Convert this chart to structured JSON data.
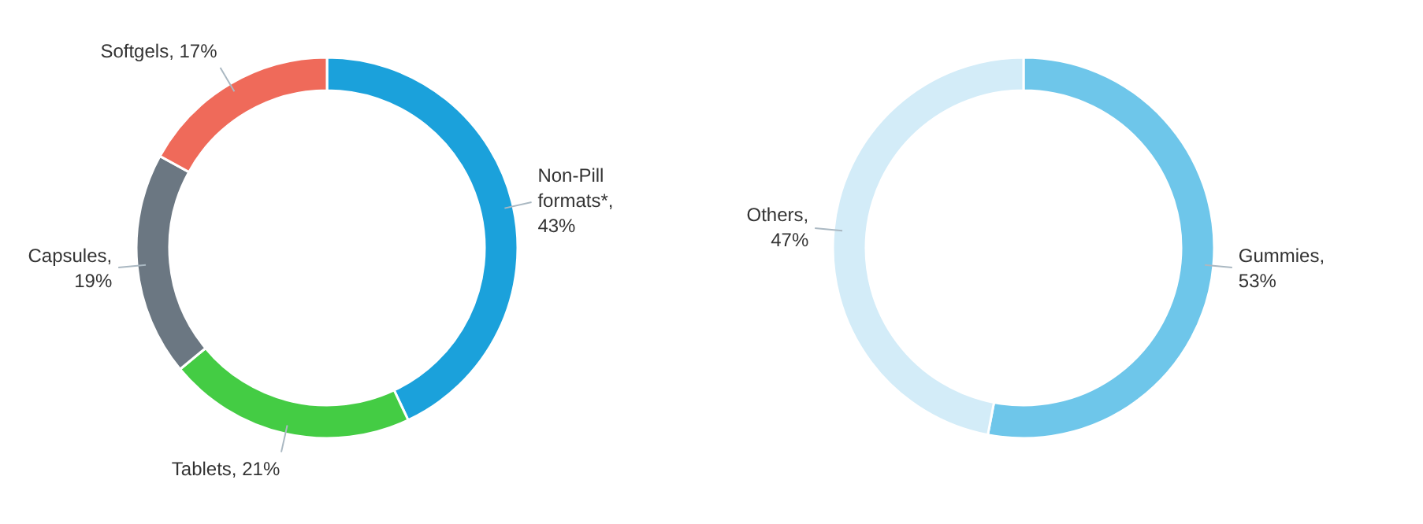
{
  "chart_data": [
    {
      "type": "donut",
      "categories": [
        "Non-Pill formats*, 43%",
        "Tablets, 21%",
        "Capsules, 19%",
        "Softgels, 17%"
      ],
      "values": [
        43,
        21,
        19,
        17
      ],
      "colors": [
        "#1ba1db",
        "#44cc44",
        "#6b7782",
        "#ef6a5a"
      ]
    },
    {
      "type": "donut",
      "categories": [
        "Gummies, 53%",
        "Others, 47%"
      ],
      "values": [
        53,
        47
      ],
      "colors": [
        "#6ec6ea",
        "#d3ecf8"
      ]
    }
  ]
}
